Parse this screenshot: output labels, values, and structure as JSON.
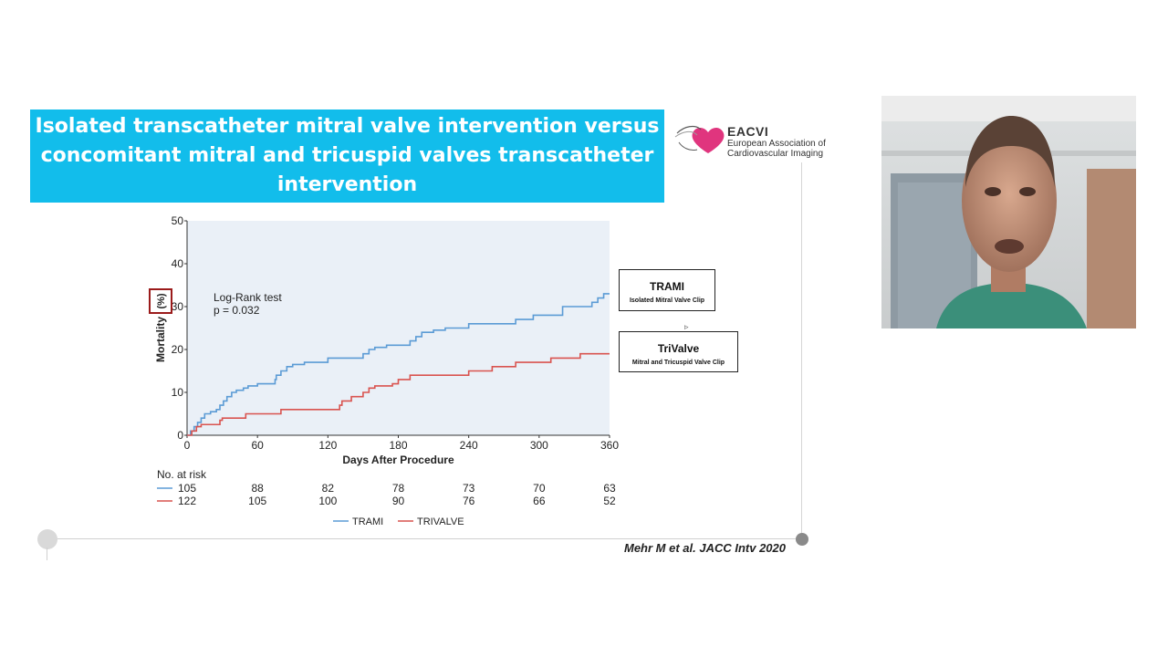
{
  "slide": {
    "title_lines": [
      "Isolated transcatheter mitral valve intervention versus",
      "concomitant mitral and tricuspid valves transcatheter",
      "intervention"
    ],
    "logo": {
      "brand": "EACVI",
      "line1": "European Association of",
      "line2": "Cardiovascular Imaging"
    },
    "citation": "Mehr M et al. JACC Intv 2020",
    "legend_boxes": [
      {
        "title": "TRAMI",
        "subtitle": "Isolated Mitral Valve Clip"
      },
      {
        "title": "TriValve",
        "subtitle": "Mitral and Tricuspid Valve Clip"
      }
    ]
  },
  "colors": {
    "banner": "#12bdeb",
    "trami": "#5b9bd5",
    "trivalve": "#d9534f",
    "plot_bg": "#eaf0f7",
    "highlight_box": "#9b1b1b"
  },
  "chart_data": {
    "type": "line",
    "step": true,
    "xlabel": "Days After Procedure",
    "ylabel_text": "Mortality",
    "ylabel_unit": "(%)",
    "xlim": [
      0,
      360
    ],
    "ylim": [
      0,
      50
    ],
    "xticks": [
      0,
      60,
      120,
      180,
      240,
      300,
      360
    ],
    "yticks": [
      0,
      10,
      20,
      30,
      40,
      50
    ],
    "annotation": [
      "Log-Rank test",
      "p = 0.032"
    ],
    "series": [
      {
        "name": "TRAMI",
        "color": "#5b9bd5",
        "x": [
          0,
          3,
          6,
          9,
          12,
          15,
          20,
          25,
          28,
          31,
          34,
          38,
          42,
          48,
          52,
          60,
          75,
          76,
          80,
          85,
          90,
          100,
          120,
          150,
          155,
          160,
          170,
          190,
          195,
          200,
          210,
          220,
          240,
          280,
          295,
          320,
          345,
          350,
          355,
          360
        ],
        "y": [
          0,
          1,
          2,
          3,
          4,
          5,
          5.5,
          6,
          7,
          8,
          9,
          10,
          10.5,
          11,
          11.5,
          12,
          13,
          14,
          15,
          16,
          16.5,
          17,
          18,
          19,
          20,
          20.5,
          21,
          22,
          23,
          24,
          24.5,
          25,
          26,
          27,
          28,
          30,
          31,
          32,
          33,
          33
        ]
      },
      {
        "name": "TRIVALVE",
        "color": "#d9534f",
        "x": [
          0,
          4,
          8,
          12,
          28,
          30,
          50,
          80,
          130,
          132,
          140,
          150,
          155,
          160,
          175,
          180,
          190,
          240,
          260,
          280,
          310,
          335,
          360
        ],
        "y": [
          0,
          1,
          2,
          2.5,
          3.5,
          4,
          5,
          6,
          7,
          8,
          9,
          10,
          11,
          11.5,
          12,
          13,
          14,
          15,
          16,
          17,
          18,
          19,
          19
        ]
      }
    ],
    "at_risk": {
      "label": "No. at risk",
      "trami": [
        105,
        88,
        82,
        78,
        73,
        70,
        63
      ],
      "trivalve": [
        122,
        105,
        100,
        90,
        76,
        66,
        52
      ]
    },
    "legend": [
      "TRAMI",
      "TRIVALVE"
    ],
    "legend_position": "bottom"
  }
}
